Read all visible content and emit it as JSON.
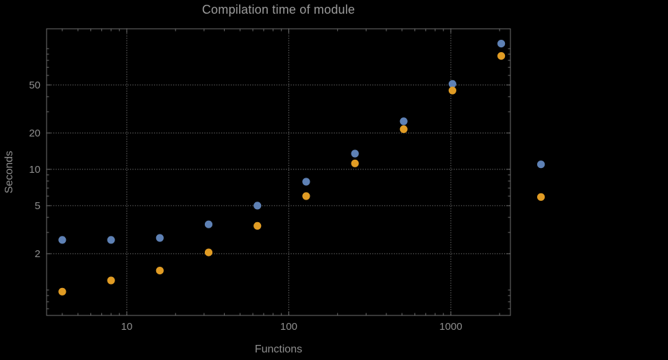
{
  "chart_data": {
    "type": "scatter",
    "title": "Compilation time of module",
    "xlabel": "Functions",
    "ylabel": "Seconds",
    "x_scale": "log",
    "y_scale": "log",
    "xlim": [
      3.2,
      2333
    ],
    "ylim": [
      0.616,
      146
    ],
    "grid": "dotted",
    "legend_position": "outside-right-markers-only",
    "x_ticks": [
      {
        "value": 10,
        "label": "10"
      },
      {
        "value": 100,
        "label": "100"
      },
      {
        "value": 1000,
        "label": "1000"
      }
    ],
    "y_ticks": [
      {
        "value": 2,
        "label": "2"
      },
      {
        "value": 5,
        "label": "5"
      },
      {
        "value": 10,
        "label": "10"
      },
      {
        "value": 20,
        "label": "20"
      },
      {
        "value": 50,
        "label": "50"
      }
    ],
    "series": [
      {
        "name": "blue-series",
        "color": "#5e81b5",
        "points": [
          [
            4,
            2.6
          ],
          [
            8,
            2.6
          ],
          [
            16,
            2.7
          ],
          [
            32,
            3.5
          ],
          [
            64,
            5.0
          ],
          [
            128,
            7.9
          ],
          [
            256,
            13.5
          ],
          [
            512,
            25
          ],
          [
            1024,
            51
          ],
          [
            2048,
            110
          ]
        ]
      },
      {
        "name": "orange-series",
        "color": "#e19c24",
        "points": [
          [
            4,
            0.97
          ],
          [
            8,
            1.2
          ],
          [
            16,
            1.45
          ],
          [
            32,
            2.05
          ],
          [
            64,
            3.4
          ],
          [
            128,
            6.0
          ],
          [
            256,
            11.2
          ],
          [
            512,
            21.5
          ],
          [
            1024,
            45
          ],
          [
            2048,
            87
          ]
        ]
      }
    ],
    "legend_markers": [
      {
        "series": "blue-series",
        "color": "#5e81b5",
        "x": 3600,
        "y": 11
      },
      {
        "series": "orange-series",
        "color": "#e19c24",
        "x": 3600,
        "y": 5.9
      }
    ],
    "colors": {
      "background": "#000000",
      "text": "#8f8f8f",
      "title": "#9c9c9c",
      "frame": "#6f6f6f",
      "grid": "#606060"
    }
  }
}
